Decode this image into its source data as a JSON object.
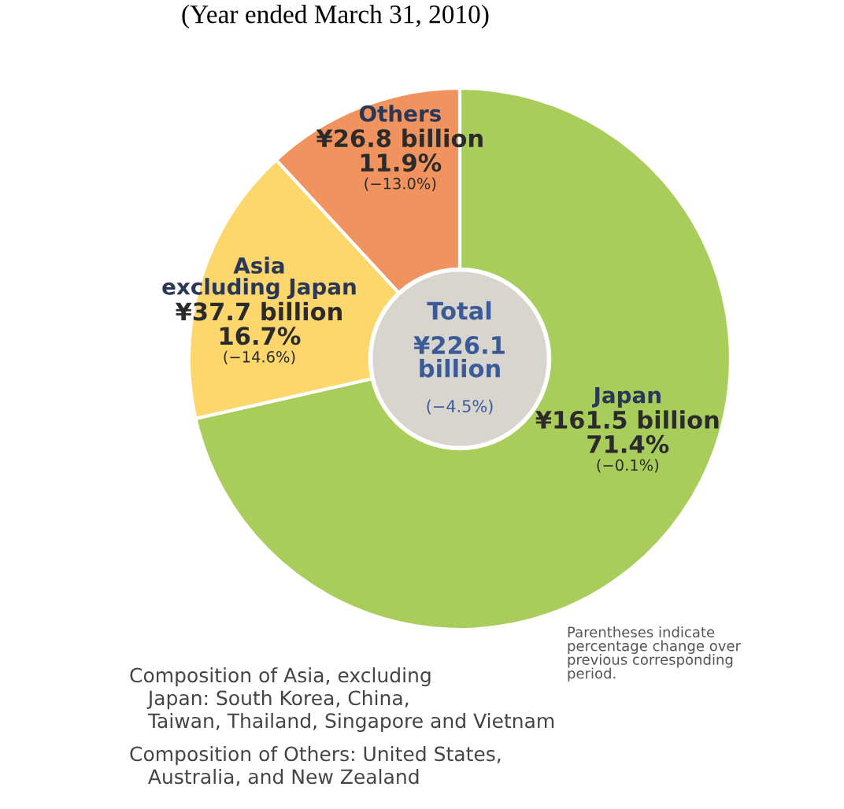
{
  "chart_data": {
    "type": "donut",
    "subtitle": "(Year ended March 31, 2010)",
    "categories": [
      "Japan",
      "Asia\nexcluding Japan",
      "Others"
    ],
    "values": [
      161.5,
      37.7,
      26.8
    ],
    "colors": [
      "#a9cd5b",
      "#fdd76c",
      "#f0935e"
    ],
    "value_labels": [
      "¥161.5 billion",
      "¥37.7 billion",
      "¥26.8 billion"
    ],
    "annotations": [
      "Total",
      "¥226.1\nbillion",
      "(−4.5%)",
      "Parentheses indicate\npercentage change over\nprevious corresponding\nperiod.",
      "Composition of Asia, excluding\n   Japan: South Korea, China,\n   Taiwan, Thailand, Singapore and Vietnam",
      "Composition of Others: United States,\n   Australia, and New Zealand",
      "71.4%",
      "(−0.1%)",
      "16.7%",
      "(−14.6%)",
      "11.9%",
      "(−13.0%)"
    ]
  }
}
